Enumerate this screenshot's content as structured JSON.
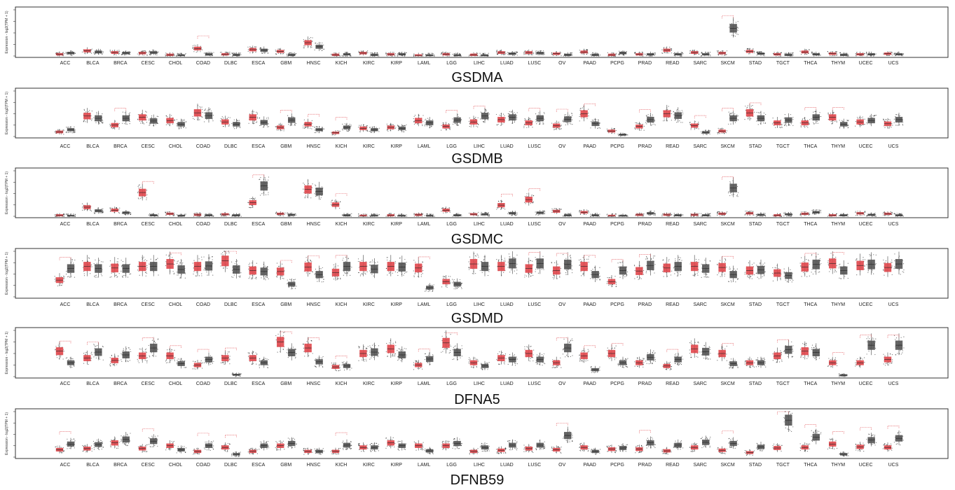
{
  "colors": {
    "tumor": "#e0474c",
    "normal": "#555555",
    "sig": "#e0474c",
    "dots": "#000000"
  },
  "chart_data": [
    {
      "type": "box",
      "title": "GSDMA",
      "ylabel": "Expression - log2(TPM + 1)",
      "categories": [
        "ACC",
        "BLCA",
        "BRCA",
        "CESC",
        "CHOL",
        "COAD",
        "DLBC",
        "ESCA",
        "GBM",
        "HNSC",
        "KICH",
        "KIRC",
        "KIRP",
        "LAML",
        "LGG",
        "LIHC",
        "LUAD",
        "LUSC",
        "OV",
        "PAAD",
        "PCPG",
        "PRAD",
        "READ",
        "SARC",
        "SKCM",
        "STAD",
        "TGCT",
        "THCA",
        "THYM",
        "UCEC",
        "UCS"
      ],
      "series": [
        {
          "values": [
            0.3,
            0.9,
            0.6,
            0.5,
            0.2,
            1.3,
            0.3,
            1.1,
            0.8,
            2.3,
            0.2,
            0.5,
            0.3,
            0.1,
            0.3,
            0.2,
            0.6,
            0.6,
            0.4,
            0.7,
            0.2,
            0.3,
            1.0,
            0.6,
            0.5,
            0.8,
            0.3,
            0.7,
            0.4,
            0.3,
            0.4
          ]
        },
        {
          "values": [
            0.5,
            0.7,
            0.5,
            0.6,
            0.1,
            0.3,
            0.2,
            1.0,
            0.2,
            1.6,
            0.3,
            0.2,
            0.3,
            0.1,
            0.1,
            0.1,
            0.4,
            0.5,
            0.2,
            0.2,
            0.5,
            0.3,
            0.3,
            0.3,
            4.8,
            0.4,
            0.2,
            0.3,
            0.2,
            0.3,
            0.3
          ]
        }
      ],
      "significant": [
        "COAD",
        "SKCM"
      ],
      "ylim": [
        0,
        8
      ]
    },
    {
      "type": "box",
      "title": "GSDMB",
      "ylabel": "Expression - log2(TPM + 1)",
      "categories": [
        "ACC",
        "BLCA",
        "BRCA",
        "CESC",
        "CHOL",
        "COAD",
        "DLBC",
        "ESCA",
        "GBM",
        "HNSC",
        "KICH",
        "KIRC",
        "KIRP",
        "LAML",
        "LGG",
        "LIHC",
        "LUAD",
        "LUSC",
        "OV",
        "PAAD",
        "PCPG",
        "PRAD",
        "READ",
        "SARC",
        "SKCM",
        "STAD",
        "TGCT",
        "THCA",
        "THYM",
        "UCEC",
        "UCS"
      ],
      "series": [
        {
          "values": [
            1.0,
            4.5,
            2.5,
            4.2,
            3.5,
            5.2,
            3.2,
            4.2,
            2.0,
            2.7,
            0.8,
            1.8,
            2.0,
            3.5,
            2.2,
            3.2,
            3.7,
            3.0,
            2.4,
            5.0,
            1.2,
            2.2,
            5.0,
            2.4,
            1.2,
            5.2,
            3.0,
            3.0,
            4.2,
            3.2,
            2.8
          ]
        },
        {
          "values": [
            1.5,
            4.0,
            4.0,
            3.4,
            2.7,
            4.6,
            2.7,
            3.1,
            3.6,
            1.5,
            2.0,
            1.5,
            1.8,
            3.0,
            3.6,
            4.5,
            4.2,
            4.0,
            3.8,
            2.8,
            0.4,
            3.7,
            4.6,
            0.9,
            4.0,
            4.0,
            3.6,
            4.2,
            2.7,
            3.5,
            3.7
          ]
        }
      ],
      "significant": [
        "BRCA",
        "GBM",
        "HNSC",
        "KICH",
        "LGG",
        "LIHC",
        "LUSC",
        "OV",
        "PAAD",
        "PRAD",
        "SARC",
        "SKCM",
        "STAD",
        "THCA",
        "THYM"
      ],
      "ylim": [
        0,
        10
      ]
    },
    {
      "type": "box",
      "title": "GSDMC",
      "ylabel": "Expression - log2(TPM + 1)",
      "categories": [
        "ACC",
        "BLCA",
        "BRCA",
        "CESC",
        "CHOL",
        "COAD",
        "DLBC",
        "ESCA",
        "GBM",
        "HNSC",
        "KICH",
        "KIRC",
        "KIRP",
        "LAML",
        "LGG",
        "LIHC",
        "LUAD",
        "LUSC",
        "OV",
        "PAAD",
        "PCPG",
        "PRAD",
        "READ",
        "SARC",
        "SKCM",
        "STAD",
        "TGCT",
        "THCA",
        "THYM",
        "UCEC",
        "UCS"
      ],
      "series": [
        {
          "values": [
            0.2,
            1.8,
            1.2,
            4.7,
            0.5,
            0.3,
            0.4,
            2.7,
            0.5,
            5.3,
            2.3,
            0.1,
            0.2,
            0.3,
            1.2,
            0.4,
            2.2,
            3.3,
            1.0,
            0.8,
            0.1,
            0.3,
            0.3,
            0.3,
            0.5,
            0.6,
            0.2,
            0.5,
            0.2,
            0.6,
            0.5
          ]
        },
        {
          "values": [
            0.1,
            1.1,
            0.7,
            0.2,
            0.1,
            0.2,
            0.2,
            6.0,
            0.3,
            4.9,
            0.2,
            0.1,
            0.1,
            0.1,
            0.2,
            0.4,
            0.6,
            0.7,
            0.2,
            0.2,
            0.1,
            0.6,
            0.2,
            0.2,
            5.6,
            0.3,
            0.4,
            0.8,
            0.2,
            0.3,
            0.2
          ]
        }
      ],
      "significant": [
        "CESC",
        "ESCA",
        "KICH",
        "LUAD",
        "LUSC",
        "SKCM"
      ],
      "ylim": [
        0,
        9
      ]
    },
    {
      "type": "box",
      "title": "GSDMD",
      "ylabel": "Expression - log2(TPM + 1)",
      "categories": [
        "ACC",
        "BLCA",
        "BRCA",
        "CESC",
        "CHOL",
        "COAD",
        "DLBC",
        "ESCA",
        "GBM",
        "HNSC",
        "KICH",
        "KIRC",
        "KIRP",
        "LAML",
        "LGG",
        "LIHC",
        "LUAD",
        "LUSC",
        "OV",
        "PAAD",
        "PCPG",
        "PRAD",
        "READ",
        "SARC",
        "SKCM",
        "STAD",
        "TGCT",
        "THCA",
        "THYM",
        "UCEC",
        "UCS"
      ],
      "series": [
        {
          "values": [
            3.3,
            6.0,
            5.7,
            6.0,
            6.5,
            6.0,
            7.1,
            5.2,
            5.0,
            5.9,
            4.8,
            6.0,
            6.0,
            5.7,
            3.0,
            6.5,
            6.0,
            5.6,
            5.2,
            6.0,
            3.0,
            5.1,
            5.7,
            6.0,
            5.8,
            5.2,
            4.7,
            5.9,
            6.6,
            6.2,
            5.8
          ]
        },
        {
          "values": [
            5.6,
            5.6,
            5.6,
            6.0,
            5.4,
            6.1,
            5.4,
            5.0,
            2.5,
            4.4,
            6.0,
            5.5,
            5.9,
            1.8,
            2.5,
            6.0,
            6.6,
            6.6,
            6.4,
            4.4,
            5.2,
            6.2,
            6.0,
            5.6,
            4.4,
            5.3,
            4.2,
            6.4,
            5.2,
            6.4,
            6.5
          ]
        }
      ],
      "significant": [
        "ACC",
        "CHOL",
        "DLBC",
        "GBM",
        "HNSC",
        "KICH",
        "LAML",
        "LUSC",
        "OV",
        "PAAD",
        "PCPG",
        "PRAD",
        "SKCM",
        "THCA",
        "THYM"
      ],
      "ylim": [
        0,
        9
      ]
    },
    {
      "type": "box",
      "title": "DFNA5",
      "ylabel": "Expression - log2(TPM + 1)",
      "categories": [
        "ACC",
        "BLCA",
        "BRCA",
        "CESC",
        "CHOL",
        "COAD",
        "DLBC",
        "ESCA",
        "GBM",
        "HNSC",
        "KICH",
        "KIRC",
        "KIRP",
        "LAML",
        "LGG",
        "LIHC",
        "LUAD",
        "LUSC",
        "OV",
        "PAAD",
        "PCPG",
        "PRAD",
        "READ",
        "SARC",
        "SKCM",
        "STAD",
        "TGCT",
        "THCA",
        "THYM",
        "UCEC",
        "UCS"
      ],
      "series": [
        {
          "values": [
            5.5,
            4.0,
            3.5,
            4.5,
            4.5,
            2.5,
            4.0,
            4.0,
            7.5,
            6.2,
            2.1,
            5.0,
            6.0,
            2.5,
            7.3,
            3.0,
            4.0,
            5.0,
            3.0,
            4.5,
            5.0,
            3.0,
            2.3,
            6.0,
            5.0,
            3.0,
            4.5,
            5.5,
            3.0,
            3.0,
            3.7
          ]
        },
        {
          "values": [
            3.0,
            5.3,
            4.7,
            6.2,
            2.8,
            3.7,
            0.4,
            3.0,
            5.2,
            3.2,
            2.3,
            5.3,
            4.7,
            3.8,
            5.2,
            2.3,
            3.7,
            3.7,
            6.2,
            1.5,
            3.0,
            4.2,
            3.7,
            5.4,
            2.8,
            3.0,
            5.8,
            5.2,
            0.3,
            6.8,
            6.8
          ]
        }
      ],
      "significant": [
        "ACC",
        "BLCA",
        "CESC",
        "CHOL",
        "COAD",
        "DLBC",
        "GBM",
        "HNSC",
        "KICH",
        "LAML",
        "LGG",
        "OV",
        "PAAD",
        "PCPG",
        "READ",
        "SKCM",
        "TGCT",
        "THYM",
        "UCEC",
        "UCS"
      ],
      "ylim": [
        0,
        10
      ]
    },
    {
      "type": "box",
      "title": "DFNB59",
      "ylabel": "Expression - log2(TPM + 1)",
      "categories": [
        "ACC",
        "BLCA",
        "BRCA",
        "CESC",
        "CHOL",
        "COAD",
        "DLBC",
        "ESCA",
        "GBM",
        "HNSC",
        "KICH",
        "KIRC",
        "KIRP",
        "LAML",
        "LGG",
        "LIHC",
        "LUAD",
        "LUSC",
        "OV",
        "PAAD",
        "PCPG",
        "PRAD",
        "READ",
        "SARC",
        "SKCM",
        "STAD",
        "TGCT",
        "THCA",
        "THYM",
        "UCEC",
        "UCS"
      ],
      "series": [
        {
          "values": [
            1.3,
            1.5,
            2.5,
            1.5,
            2.0,
            1.0,
            1.7,
            1.0,
            2.0,
            1.0,
            1.0,
            1.7,
            2.5,
            2.0,
            2.0,
            1.0,
            1.2,
            1.5,
            1.3,
            1.7,
            1.4,
            1.4,
            1.1,
            1.7,
            1.2,
            0.8,
            1.6,
            1.7,
            2.3,
            1.8,
            1.7
          ]
        },
        {
          "values": [
            2.3,
            2.2,
            3.1,
            2.8,
            1.3,
            2.0,
            0.5,
            2.0,
            2.4,
            1.0,
            2.1,
            1.7,
            2.0,
            1.1,
            2.4,
            1.7,
            2.1,
            2.1,
            3.8,
            1.0,
            1.6,
            2.5,
            2.1,
            2.6,
            2.4,
            1.8,
            6.5,
            3.5,
            0.5,
            3.0,
            3.3
          ]
        }
      ],
      "significant": [
        "ACC",
        "CESC",
        "COAD",
        "DLBC",
        "KICH",
        "OV",
        "PRAD",
        "SKCM",
        "TGCT",
        "THCA",
        "THYM",
        "UCEC",
        "UCS"
      ],
      "ylim": [
        0,
        8
      ]
    }
  ]
}
